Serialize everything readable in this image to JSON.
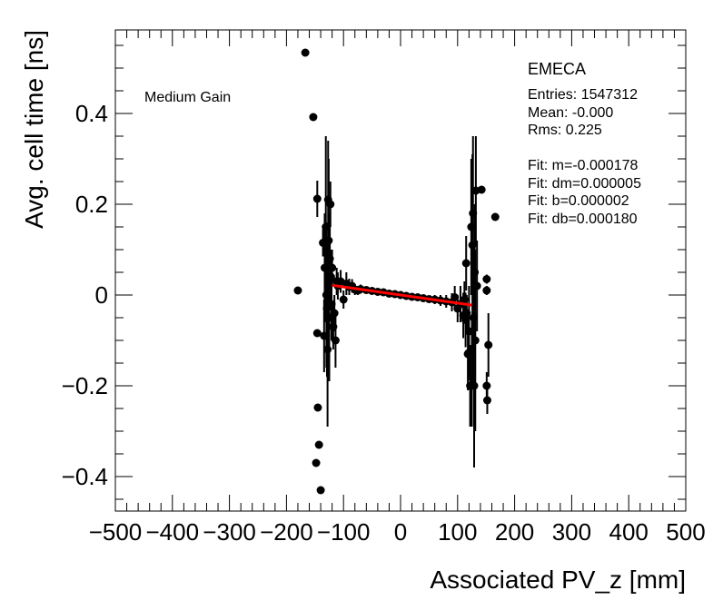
{
  "chart_data": {
    "type": "scatter",
    "title": "",
    "xlabel": "Associated PV_z [mm]",
    "ylabel": "Avg. cell time [ns]",
    "xlim": [
      -500,
      500
    ],
    "ylim": [
      -0.476,
      0.584
    ],
    "xticks": [
      -500,
      -400,
      -300,
      -200,
      -100,
      0,
      100,
      200,
      300,
      400,
      500
    ],
    "xtick_labels": [
      "−500",
      "−400",
      "−300",
      "−200",
      "−100",
      "0",
      "100",
      "200",
      "300",
      "400",
      "500"
    ],
    "yticks": [
      -0.4,
      -0.2,
      0,
      0.2,
      0.4
    ],
    "ytick_labels": [
      "−0.4",
      "−0.2",
      "0",
      "0.2",
      "0.4"
    ],
    "x_minor_step": 20,
    "y_minor_step": 0.05,
    "grid": false,
    "annotation": "Medium Gain",
    "stats": {
      "title": "EMECA",
      "lines": [
        "Entries: 1547312",
        "Mean: -0.000",
        "Rms: 0.225",
        "",
        "Fit: m=-0.000178",
        "Fit: dm=0.000005",
        "Fit: b=0.000002",
        "Fit: db=0.000180"
      ]
    },
    "fit": {
      "m": -0.000178,
      "b": 2e-06,
      "x_range": [
        -120,
        125
      ],
      "color": "#ff0000"
    },
    "series": [
      {
        "name": "data",
        "color": "#000000",
        "x": [
          -180,
          -167,
          -153,
          -146,
          -148,
          -146,
          -145,
          -143,
          -140,
          -136,
          -134,
          -133,
          -131,
          -130,
          -129,
          -128,
          -127,
          -126,
          -125,
          -124,
          -123,
          -122,
          -121,
          -120,
          -118,
          -116,
          -114,
          -112,
          -110,
          -105,
          -100,
          -95,
          -90,
          -85,
          -80,
          -75,
          -70,
          -60,
          -50,
          -40,
          -30,
          -20,
          -10,
          0,
          10,
          20,
          30,
          40,
          50,
          60,
          70,
          80,
          90,
          95,
          100,
          105,
          110,
          112,
          114,
          115,
          116,
          118,
          119,
          120,
          122,
          124,
          125,
          126,
          127,
          128,
          129,
          130,
          131,
          132,
          134,
          142,
          151,
          151,
          151,
          152,
          154,
          166
        ],
        "y": [
          0.01,
          0.534,
          0.392,
          0.212,
          -0.37,
          -0.084,
          -0.248,
          -0.33,
          -0.43,
          0.115,
          -0.09,
          0.06,
          0.15,
          0.0,
          -0.03,
          -0.12,
          0.21,
          0.12,
          -0.05,
          0.08,
          0.2,
          0.04,
          -0.02,
          0.06,
          -0.07,
          -0.04,
          -0.1,
          0.03,
          0.02,
          0.03,
          -0.01,
          0.025,
          0.018,
          0.02,
          0.012,
          0.01,
          0.013,
          0.011,
          0.009,
          0.007,
          0.006,
          0.003,
          0.002,
          0.0,
          -0.002,
          -0.004,
          -0.005,
          -0.007,
          -0.009,
          -0.01,
          -0.012,
          -0.014,
          -0.016,
          -0.005,
          -0.03,
          -0.02,
          -0.045,
          -0.01,
          -0.055,
          0.07,
          -0.04,
          -0.13,
          -0.128,
          -0.08,
          -0.2,
          0.15,
          -0.17,
          0.11,
          0.18,
          -0.05,
          -0.2,
          0.05,
          -0.1,
          0.23,
          0.02,
          0.232,
          0.035,
          0.01,
          -0.2,
          -0.232,
          -0.11,
          0.172
        ],
        "yerr": [
          0,
          0,
          0,
          0.04,
          0,
          0,
          0,
          0,
          0,
          0.03,
          0.08,
          0.12,
          0.2,
          0.16,
          0.15,
          0.17,
          0.13,
          0.18,
          0.14,
          0.1,
          0.05,
          0.06,
          0.08,
          0.04,
          0.05,
          0.04,
          0.06,
          0.03,
          0.03,
          0.025,
          0.02,
          0.025,
          0.018,
          0.015,
          0.012,
          0.01,
          0.01,
          0.008,
          0.006,
          0.005,
          0.004,
          0.004,
          0.004,
          0.004,
          0.004,
          0.004,
          0.005,
          0.006,
          0.008,
          0.01,
          0.012,
          0.014,
          0.02,
          0.025,
          0.03,
          0.04,
          0.05,
          0.04,
          0.06,
          0.06,
          0.04,
          0.08,
          0.06,
          0.1,
          0.09,
          0.15,
          0.12,
          0.2,
          0.17,
          0.15,
          0.18,
          0.15,
          0.2,
          0.12,
          0.1,
          0,
          0.01,
          0.01,
          0.03,
          0.03,
          0.07,
          0
        ]
      }
    ]
  }
}
